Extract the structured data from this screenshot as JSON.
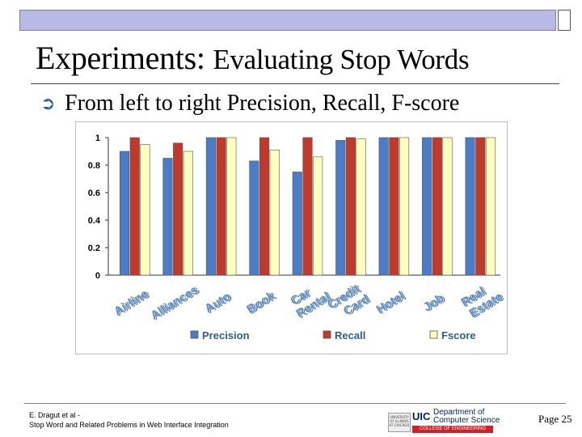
{
  "slide": {
    "title_main": "Experiments:",
    "title_sub": "Evaluating Stop Words",
    "bullet_text": "From left to right Precision, Recall, F-score",
    "footer_line1": "E. Dragut et al -",
    "footer_line2": "Stop Word and Related Problems in Web Interface Integration",
    "page_label": "Page 25",
    "logo": {
      "shield_text": "UNIVERSITY OF ILLINOIS AT CHICAGO",
      "uic": "UIC",
      "dept_line1": "Department of",
      "dept_line2": "Computer Science",
      "college": "COLLEGE OF ENGINEERING"
    }
  },
  "colors": {
    "precision": "#4a7cc7",
    "recall": "#c0392b",
    "fscore": "#ffffc0",
    "title_strip": "#b9b9e6",
    "bullet": "#2a5fa8"
  },
  "chart_data": {
    "type": "bar",
    "categories": [
      "Airline",
      "Alliances",
      "Auto",
      "Book",
      "Car Rental",
      "Credit Card",
      "Hotel",
      "Job",
      "Real Estate"
    ],
    "series": [
      {
        "name": "Precision",
        "values": [
          0.9,
          0.85,
          1.0,
          0.83,
          0.75,
          0.98,
          1.0,
          1.0,
          1.0
        ]
      },
      {
        "name": "Recall",
        "values": [
          1.0,
          0.96,
          1.0,
          1.0,
          1.0,
          1.0,
          1.0,
          1.0,
          1.0
        ]
      },
      {
        "name": "Fscore",
        "values": [
          0.95,
          0.9,
          1.0,
          0.91,
          0.86,
          0.99,
          1.0,
          1.0,
          1.0
        ]
      }
    ],
    "y_ticks": [
      "0",
      "0.2",
      "0.4",
      "0.6",
      "0.8",
      "1"
    ],
    "ylim": [
      0,
      1
    ],
    "legend": "bottom",
    "grid": false
  }
}
